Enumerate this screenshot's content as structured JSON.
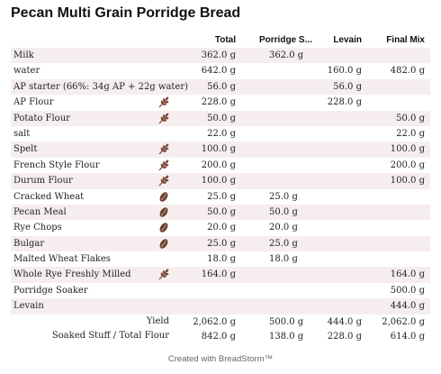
{
  "title": "Pecan Multi Grain Porridge Bread",
  "columns": {
    "total": "Total",
    "porridge": "Porridge S...",
    "levain": "Levain",
    "final": "Final Mix"
  },
  "icon_colors": {
    "flour": "#7a4a36",
    "grain": "#6b3f2a"
  },
  "rows": [
    {
      "name": "Milk",
      "icon": "",
      "total": "362.0 g",
      "porridge": "362.0 g",
      "levain": "",
      "final": ""
    },
    {
      "name": "water",
      "icon": "",
      "total": "642.0 g",
      "porridge": "",
      "levain": "160.0 g",
      "final": "482.0 g"
    },
    {
      "name": "AP starter (66%: 34g AP + 22g water)",
      "icon": "",
      "total": "56.0 g",
      "porridge": "",
      "levain": "56.0 g",
      "final": ""
    },
    {
      "name": "AP Flour",
      "icon": "wheat-icon",
      "total": "228.0 g",
      "porridge": "",
      "levain": "228.0 g",
      "final": ""
    },
    {
      "name": "Potato Flour",
      "icon": "wheat-icon",
      "total": "50.0 g",
      "porridge": "",
      "levain": "",
      "final": "50.0 g"
    },
    {
      "name": "salt",
      "icon": "",
      "total": "22.0 g",
      "porridge": "",
      "levain": "",
      "final": "22.0 g"
    },
    {
      "name": "Spelt",
      "icon": "wheat-icon",
      "total": "100.0 g",
      "porridge": "",
      "levain": "",
      "final": "100.0 g"
    },
    {
      "name": "French Style Flour",
      "icon": "wheat-icon",
      "total": "200.0 g",
      "porridge": "",
      "levain": "",
      "final": "200.0 g"
    },
    {
      "name": "Durum Flour",
      "icon": "wheat-icon",
      "total": "100.0 g",
      "porridge": "",
      "levain": "",
      "final": "100.0 g"
    },
    {
      "name": "Cracked Wheat",
      "icon": "grain-icon",
      "total": "25.0 g",
      "porridge": "25.0 g",
      "levain": "",
      "final": ""
    },
    {
      "name": "Pecan Meal",
      "icon": "grain-icon",
      "total": "50.0 g",
      "porridge": "50.0 g",
      "levain": "",
      "final": ""
    },
    {
      "name": "Rye Chops",
      "icon": "grain-icon",
      "total": "20.0 g",
      "porridge": "20.0 g",
      "levain": "",
      "final": ""
    },
    {
      "name": "Bulgar",
      "icon": "grain-icon",
      "total": "25.0 g",
      "porridge": "25.0 g",
      "levain": "",
      "final": ""
    },
    {
      "name": "Malted Wheat Flakes",
      "icon": "",
      "total": "18.0 g",
      "porridge": "18.0 g",
      "levain": "",
      "final": ""
    },
    {
      "name": "Whole Rye Freshly Milled",
      "icon": "wheat-icon",
      "total": "164.0 g",
      "porridge": "",
      "levain": "",
      "final": "164.0 g"
    },
    {
      "name": "Porridge Soaker",
      "icon": "",
      "total": "",
      "porridge": "",
      "levain": "",
      "final": "500.0 g"
    },
    {
      "name": "Levain",
      "icon": "",
      "total": "",
      "porridge": "",
      "levain": "",
      "final": "444.0 g"
    }
  ],
  "summary": [
    {
      "label": "Yield",
      "total": "2,062.0 g",
      "porridge": "500.0 g",
      "levain": "444.0 g",
      "final": "2,062.0 g"
    },
    {
      "label": "Soaked Stuff / Total Flour",
      "total": "842.0 g",
      "porridge": "138.0 g",
      "levain": "228.0 g",
      "final": "614.0 g"
    }
  ],
  "footer": "Created with BreadStorm™"
}
